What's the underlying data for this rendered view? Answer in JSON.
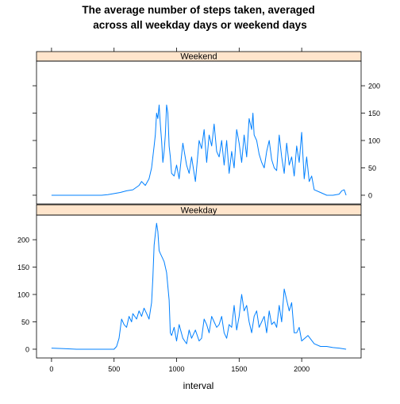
{
  "chart_data": {
    "type": "line",
    "title": "The average number of steps taken, averaged\nacross all weekday days or weekend days",
    "xlabel": "interval",
    "ylabel": "",
    "xlim": [
      -120,
      2475
    ],
    "ylim": [
      -16,
      245
    ],
    "x_ticks": [
      0,
      500,
      1000,
      1500,
      2000
    ],
    "y_ticks": [
      0,
      50,
      100,
      150,
      200
    ],
    "grid": false,
    "legend": "none",
    "line_color": "#0080ff",
    "strip_color": "#ffe5cc",
    "panels": [
      {
        "name": "Weekend",
        "y_axis_side": "right",
        "x": [
          0,
          100,
          200,
          300,
          400,
          450,
          500,
          550,
          600,
          650,
          700,
          720,
          750,
          780,
          800,
          820,
          830,
          840,
          850,
          860,
          870,
          880,
          890,
          900,
          910,
          920,
          930,
          940,
          950,
          960,
          980,
          1000,
          1020,
          1050,
          1080,
          1100,
          1120,
          1150,
          1180,
          1200,
          1220,
          1240,
          1260,
          1280,
          1300,
          1320,
          1340,
          1360,
          1380,
          1400,
          1420,
          1440,
          1460,
          1480,
          1500,
          1520,
          1540,
          1560,
          1580,
          1600,
          1610,
          1620,
          1640,
          1660,
          1680,
          1700,
          1720,
          1740,
          1760,
          1780,
          1800,
          1820,
          1840,
          1860,
          1880,
          1900,
          1920,
          1940,
          1960,
          1980,
          2000,
          2020,
          2040,
          2060,
          2080,
          2100,
          2150,
          2200,
          2250,
          2300,
          2320,
          2340,
          2355
        ],
        "y": [
          0,
          0,
          0,
          0,
          0,
          1,
          3,
          5,
          8,
          10,
          18,
          25,
          18,
          30,
          50,
          90,
          110,
          150,
          140,
          165,
          130,
          100,
          60,
          80,
          110,
          165,
          150,
          90,
          70,
          40,
          35,
          55,
          30,
          95,
          55,
          40,
          70,
          25,
          100,
          85,
          120,
          60,
          110,
          90,
          130,
          80,
          70,
          100,
          55,
          100,
          40,
          80,
          50,
          120,
          95,
          60,
          110,
          70,
          140,
          120,
          150,
          110,
          100,
          75,
          60,
          50,
          80,
          100,
          65,
          50,
          45,
          110,
          70,
          40,
          95,
          55,
          70,
          35,
          90,
          60,
          115,
          30,
          70,
          25,
          35,
          10,
          5,
          0,
          0,
          2,
          8,
          10,
          0
        ]
      },
      {
        "name": "Weekday",
        "y_axis_side": "left",
        "x": [
          0,
          100,
          200,
          300,
          400,
          450,
          500,
          520,
          540,
          560,
          580,
          600,
          620,
          640,
          650,
          680,
          700,
          720,
          740,
          760,
          780,
          800,
          810,
          820,
          830,
          840,
          850,
          860,
          870,
          880,
          900,
          920,
          940,
          950,
          960,
          980,
          1000,
          1020,
          1050,
          1080,
          1100,
          1120,
          1150,
          1180,
          1200,
          1220,
          1240,
          1260,
          1280,
          1300,
          1320,
          1340,
          1360,
          1380,
          1400,
          1420,
          1440,
          1460,
          1480,
          1500,
          1520,
          1540,
          1560,
          1580,
          1600,
          1620,
          1640,
          1660,
          1680,
          1700,
          1720,
          1740,
          1760,
          1780,
          1800,
          1820,
          1840,
          1860,
          1880,
          1900,
          1920,
          1940,
          1960,
          1980,
          2000,
          2050,
          2100,
          2150,
          2200,
          2250,
          2300,
          2355
        ],
        "y": [
          2,
          1,
          0,
          0,
          0,
          0,
          0,
          5,
          20,
          55,
          45,
          40,
          60,
          50,
          65,
          55,
          70,
          60,
          75,
          65,
          55,
          85,
          130,
          190,
          210,
          230,
          215,
          180,
          175,
          170,
          160,
          140,
          90,
          30,
          25,
          40,
          15,
          45,
          20,
          10,
          35,
          20,
          35,
          15,
          20,
          55,
          45,
          30,
          60,
          50,
          40,
          45,
          60,
          30,
          20,
          45,
          40,
          80,
          35,
          60,
          100,
          70,
          80,
          50,
          30,
          60,
          70,
          40,
          50,
          60,
          30,
          70,
          45,
          50,
          40,
          80,
          50,
          110,
          90,
          70,
          85,
          30,
          30,
          40,
          15,
          25,
          10,
          5,
          5,
          3,
          2,
          0
        ]
      }
    ]
  }
}
